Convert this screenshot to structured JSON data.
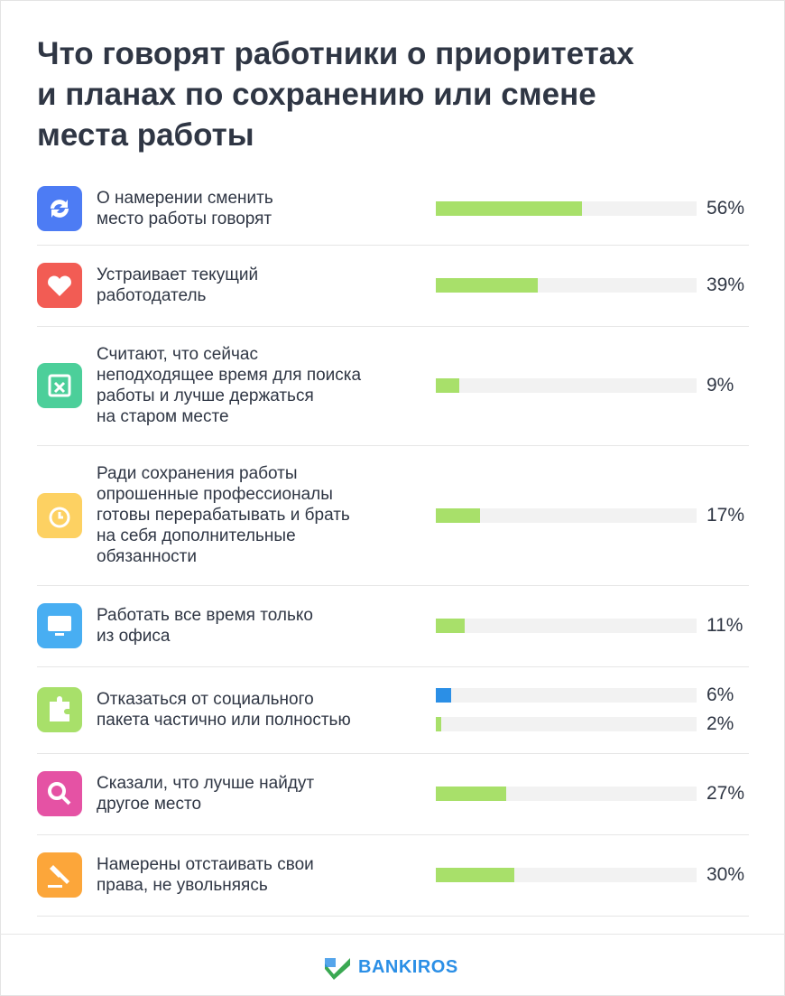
{
  "chart_data": {
    "type": "bar",
    "orientation": "horizontal",
    "title": "Что говорят работники о приоритетах\nи планах по сохранению или смене\nместа работы",
    "categories": [
      "О намерении сменить\nместо работы говорят",
      "Устраивает текущий\nработодатель",
      "Считают, что сейчас\nнеподходящее время для поиска\nработы и лучше держаться\nна старом месте",
      "Ради сохранения работы\nопрошенные профессионалы\nготовы перерабатывать и брать\nна себя дополнительные\nобязанности",
      "Работать все время только\nиз офиса",
      "Отказаться от социального\nпакета частично или полностью",
      "Сказали, что лучше найдут\nдругое место",
      "Намерены отстаивать свои\nправа, не увольняясь"
    ],
    "series": [
      {
        "color": "#2b8fe6",
        "values": [
          null,
          null,
          null,
          null,
          null,
          6,
          null,
          null
        ],
        "value_labels": [
          null,
          null,
          null,
          null,
          null,
          "6%",
          null,
          null
        ]
      },
      {
        "color": "#a8e06a",
        "values": [
          56,
          39,
          9,
          17,
          11,
          2,
          27,
          30
        ],
        "value_labels": [
          "56%",
          "39%",
          "9%",
          "17%",
          "11%",
          "2%",
          "27%",
          "30%"
        ]
      }
    ],
    "xlim": [
      0,
      100
    ]
  },
  "brand": "BANKIROS"
}
